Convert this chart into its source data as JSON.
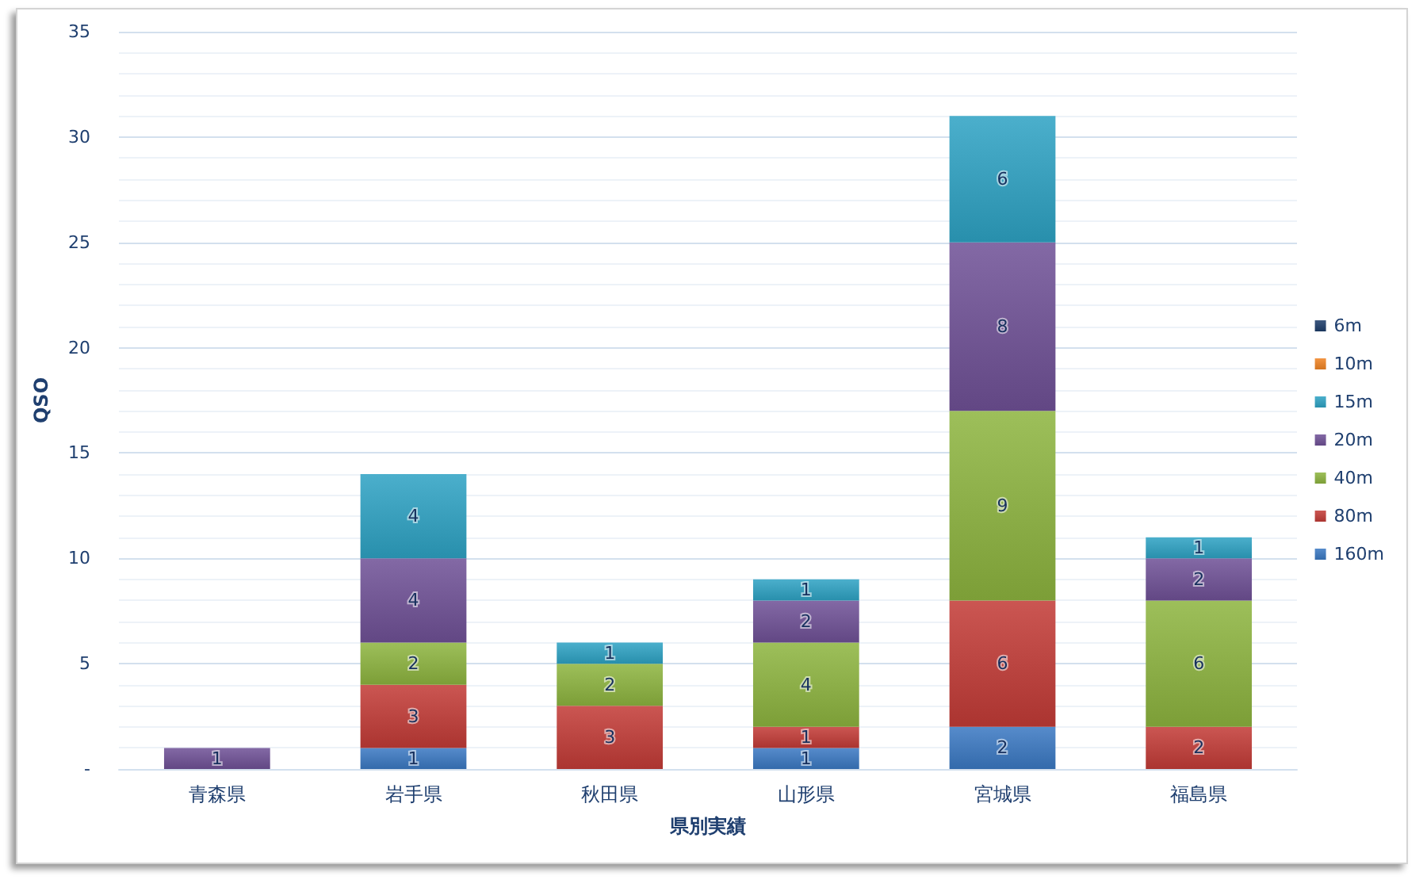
{
  "chart_data": {
    "type": "bar",
    "stacked": true,
    "xlabel": "県別実績",
    "ylabel": "QSO",
    "categories": [
      "青森県",
      "岩手県",
      "秋田県",
      "山形県",
      "宮城県",
      "福島県"
    ],
    "series": [
      {
        "name": "160m",
        "color": "#3a78c2",
        "values": [
          null,
          1,
          null,
          1,
          2,
          null
        ]
      },
      {
        "name": "80m",
        "color": "#c23b36",
        "values": [
          null,
          3,
          3,
          1,
          6,
          2
        ]
      },
      {
        "name": "40m",
        "color": "#8db43f",
        "values": [
          null,
          2,
          2,
          4,
          9,
          6
        ]
      },
      {
        "name": "20m",
        "color": "#6f5196",
        "values": [
          1,
          4,
          null,
          2,
          8,
          2
        ]
      },
      {
        "name": "15m",
        "color": "#2ea2c4",
        "values": [
          null,
          4,
          1,
          1,
          6,
          1
        ]
      },
      {
        "name": "10m",
        "color": "#f08424",
        "values": [
          null,
          null,
          null,
          null,
          null,
          null
        ]
      },
      {
        "name": "6m",
        "color": "#1d3d6a",
        "values": [
          null,
          null,
          null,
          null,
          null,
          null
        ]
      }
    ],
    "ylim": [
      0,
      35
    ],
    "yticks": [
      {
        "value": 0,
        "label": "-"
      },
      {
        "value": 1,
        "label": null
      },
      {
        "value": 2,
        "label": null
      },
      {
        "value": 3,
        "label": null
      },
      {
        "value": 4,
        "label": null
      },
      5,
      {
        "value": 6,
        "label": null
      },
      {
        "value": 7,
        "label": null
      },
      {
        "value": 8,
        "label": null
      },
      {
        "value": 9,
        "label": null
      },
      10,
      {
        "value": 11,
        "label": null
      },
      {
        "value": 12,
        "label": null
      },
      {
        "value": 13,
        "label": null
      },
      {
        "value": 14,
        "label": null
      },
      15,
      {
        "value": 16,
        "label": null
      },
      {
        "value": 17,
        "label": null
      },
      {
        "value": 18,
        "label": null
      },
      {
        "value": 19,
        "label": null
      },
      20,
      {
        "value": 21,
        "label": null
      },
      {
        "value": 22,
        "label": null
      },
      {
        "value": 23,
        "label": null
      },
      {
        "value": 24,
        "label": null
      },
      25,
      {
        "value": 26,
        "label": null
      },
      {
        "value": 27,
        "label": null
      },
      {
        "value": 28,
        "label": null
      },
      {
        "value": 29,
        "label": null
      },
      30,
      {
        "value": 31,
        "label": null
      },
      {
        "value": 32,
        "label": null
      },
      {
        "value": 33,
        "label": null
      },
      {
        "value": 34,
        "label": null
      },
      35
    ],
    "grid": true,
    "legend": "right",
    "data_labels": true
  }
}
